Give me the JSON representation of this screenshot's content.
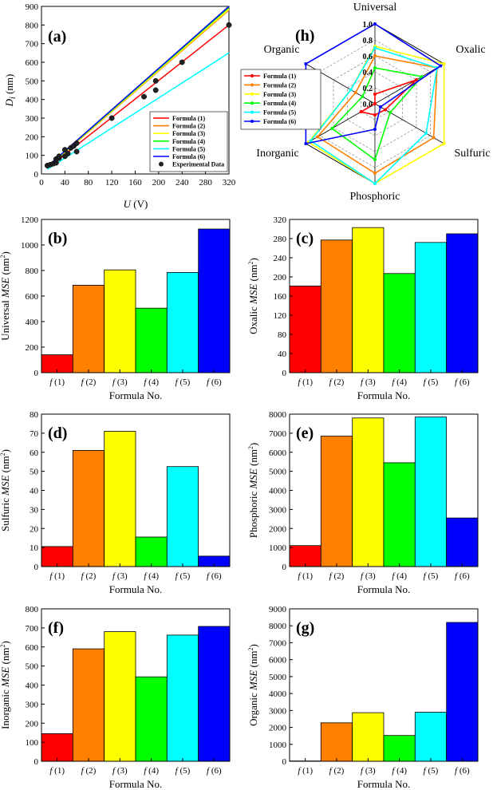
{
  "colors": [
    "#ff0000",
    "#ff7f00",
    "#ffff00",
    "#00ff00",
    "#00ffff",
    "#0000ff"
  ],
  "panel_a": {
    "label": "(a)",
    "ylabel_main": "D",
    "ylabel_sub": "i",
    "ylabel_unit": " (nm)",
    "xlabel_main": "U",
    "xlabel_unit": " (V)"
  },
  "panel_h": {
    "label": "(h)"
  },
  "bar_panels": [
    {
      "label": "(b)",
      "prefix": "Universal ",
      "mse": "MSE",
      "unit": " (nm",
      "sup": "2",
      "close": ")",
      "xlabel": "Formula No."
    },
    {
      "label": "(c)",
      "prefix": "Oxalic ",
      "mse": "MSE",
      "unit": " (nm",
      "sup": "2",
      "close": ")",
      "xlabel": "Formula No."
    },
    {
      "label": "(d)",
      "prefix": "Sulfuric ",
      "mse": "MSE",
      "unit": " (nm",
      "sup": "2",
      "close": ")",
      "xlabel": "Formula No."
    },
    {
      "label": "(e)",
      "prefix": "Phosphoric ",
      "mse": "MSE",
      "unit": " (nm",
      "sup": "2",
      "close": ")",
      "xlabel": "Formula No."
    },
    {
      "label": "(f)",
      "prefix": "Inorganic ",
      "mse": "MSE",
      "unit": " (nm",
      "sup": "2",
      "close": ")",
      "xlabel": "Formula No."
    },
    {
      "label": "(g)",
      "prefix": "Organic ",
      "mse": "MSE",
      "unit": " (nm",
      "sup": "2",
      "close": ")",
      "xlabel": "Formula No."
    }
  ],
  "chart_data": [
    {
      "id": "a",
      "type": "line",
      "title": "(a)",
      "xlabel": "U (V)",
      "ylabel": "Di (nm)",
      "xlim": [
        0,
        320
      ],
      "ylim": [
        0,
        900
      ],
      "xticks": [
        0,
        40,
        80,
        120,
        160,
        200,
        240,
        280,
        320
      ],
      "yticks": [
        0,
        100,
        200,
        300,
        400,
        500,
        600,
        700,
        800,
        900
      ],
      "legend_position": "bottom-right",
      "series": [
        {
          "name": "Formula (1)",
          "x": [
            10,
            320
          ],
          "y": [
            30,
            800
          ]
        },
        {
          "name": "Formula (2)",
          "x": [
            10,
            320
          ],
          "y": [
            35,
            880
          ]
        },
        {
          "name": "Formula (3)",
          "x": [
            10,
            320
          ],
          "y": [
            37,
            885
          ]
        },
        {
          "name": "Formula (4)",
          "x": [
            10,
            320
          ],
          "y": [
            38,
            895
          ]
        },
        {
          "name": "Formula (5)",
          "x": [
            10,
            320
          ],
          "y": [
            25,
            650
          ]
        },
        {
          "name": "Formula (6)",
          "x": [
            10,
            320
          ],
          "y": [
            40,
            900
          ]
        }
      ],
      "experimental": {
        "name": "Experimental Data",
        "points": [
          [
            10,
            45
          ],
          [
            15,
            50
          ],
          [
            20,
            55
          ],
          [
            25,
            60
          ],
          [
            25,
            80
          ],
          [
            30,
            85
          ],
          [
            30,
            95
          ],
          [
            40,
            95
          ],
          [
            40,
            130
          ],
          [
            45,
            110
          ],
          [
            50,
            140
          ],
          [
            55,
            150
          ],
          [
            60,
            120
          ],
          [
            60,
            165
          ],
          [
            120,
            300
          ],
          [
            175,
            415
          ],
          [
            195,
            450
          ],
          [
            195,
            500
          ],
          [
            240,
            600
          ],
          [
            320,
            800
          ]
        ]
      }
    },
    {
      "id": "h",
      "type": "radar",
      "title": "(h)",
      "axes": [
        "Universal",
        "Oxalic",
        "Sulfuric",
        "Phosphoric",
        "Inorganic",
        "Organic"
      ],
      "rlim": [
        0,
        1.0
      ],
      "rticks": [
        "0.0",
        "0.2",
        "0.4",
        "0.6",
        "0.8",
        "1.0"
      ],
      "legend_position": "left",
      "series": [
        {
          "name": "Formula (1)",
          "values": [
            0.12,
            0.6,
            0.15,
            0.14,
            0.2,
            0.0
          ]
        },
        {
          "name": "Formula (2)",
          "values": [
            0.6,
            0.9,
            0.85,
            0.87,
            0.83,
            0.28
          ]
        },
        {
          "name": "Formula (3)",
          "values": [
            0.72,
            1.0,
            1.0,
            1.0,
            0.96,
            0.35
          ]
        },
        {
          "name": "Formula (4)",
          "values": [
            0.45,
            0.68,
            0.22,
            0.7,
            0.62,
            0.18
          ]
        },
        {
          "name": "Formula (5)",
          "values": [
            0.7,
            0.9,
            0.74,
            1.0,
            0.93,
            0.35
          ]
        },
        {
          "name": "Formula (6)",
          "values": [
            1.0,
            0.95,
            0.08,
            0.32,
            1.0,
            1.0
          ]
        }
      ]
    },
    {
      "id": "b",
      "type": "bar",
      "title": "(b)",
      "ylabel": "Universal MSE (nm2)",
      "xlabel": "Formula No.",
      "categories": [
        "f (1)",
        "f (2)",
        "f (3)",
        "f (4)",
        "f (5)",
        "f (6)"
      ],
      "values": [
        140,
        685,
        805,
        505,
        785,
        1125
      ],
      "ylim": [
        0,
        1200
      ],
      "yticks": [
        0,
        200,
        400,
        600,
        800,
        1000,
        1200
      ]
    },
    {
      "id": "c",
      "type": "bar",
      "title": "(c)",
      "ylabel": "Oxalic MSE (nm2)",
      "xlabel": "Formula No.",
      "categories": [
        "f (1)",
        "f (2)",
        "f (3)",
        "f (4)",
        "f (5)",
        "f (6)"
      ],
      "values": [
        181,
        277,
        303,
        207,
        272,
        290
      ],
      "ylim": [
        0,
        320
      ],
      "yticks": [
        0,
        40,
        80,
        120,
        160,
        200,
        240,
        280,
        320
      ]
    },
    {
      "id": "d",
      "type": "bar",
      "title": "(d)",
      "ylabel": "Sulfuric MSE (nm2)",
      "xlabel": "Formula No.",
      "categories": [
        "f (1)",
        "f (2)",
        "f (3)",
        "f (4)",
        "f (5)",
        "f (6)"
      ],
      "values": [
        10.5,
        61,
        71,
        15.5,
        52.5,
        5.5
      ],
      "ylim": [
        0,
        80
      ],
      "yticks": [
        0,
        10,
        20,
        30,
        40,
        50,
        60,
        70,
        80
      ]
    },
    {
      "id": "e",
      "type": "bar",
      "title": "(e)",
      "ylabel": "Phosphoric MSE (nm2)",
      "xlabel": "Formula No.",
      "categories": [
        "f (1)",
        "f (2)",
        "f (3)",
        "f (4)",
        "f (5)",
        "f (6)"
      ],
      "values": [
        1100,
        6850,
        7800,
        5450,
        7850,
        2550
      ],
      "ylim": [
        0,
        8000
      ],
      "yticks": [
        0,
        1000,
        2000,
        3000,
        4000,
        5000,
        6000,
        7000,
        8000
      ]
    },
    {
      "id": "f",
      "type": "bar",
      "title": "(f)",
      "ylabel": "Inorganic MSE (nm2)",
      "xlabel": "Formula No.",
      "categories": [
        "f (1)",
        "f (2)",
        "f (3)",
        "f (4)",
        "f (5)",
        "f (6)"
      ],
      "values": [
        145,
        590,
        680,
        443,
        662,
        708
      ],
      "ylim": [
        0,
        800
      ],
      "yticks": [
        0,
        100,
        200,
        300,
        400,
        500,
        600,
        700,
        800
      ]
    },
    {
      "id": "g",
      "type": "bar",
      "title": "(g)",
      "ylabel": "Organic MSE (nm2)",
      "xlabel": "Formula No.",
      "categories": [
        "f (1)",
        "f (2)",
        "f (3)",
        "f (4)",
        "f (5)",
        "f (6)"
      ],
      "values": [
        20,
        2270,
        2870,
        1520,
        2900,
        8200
      ],
      "ylim": [
        0,
        9000
      ],
      "yticks": [
        0,
        1000,
        2000,
        3000,
        4000,
        5000,
        6000,
        7000,
        8000,
        9000
      ]
    }
  ]
}
